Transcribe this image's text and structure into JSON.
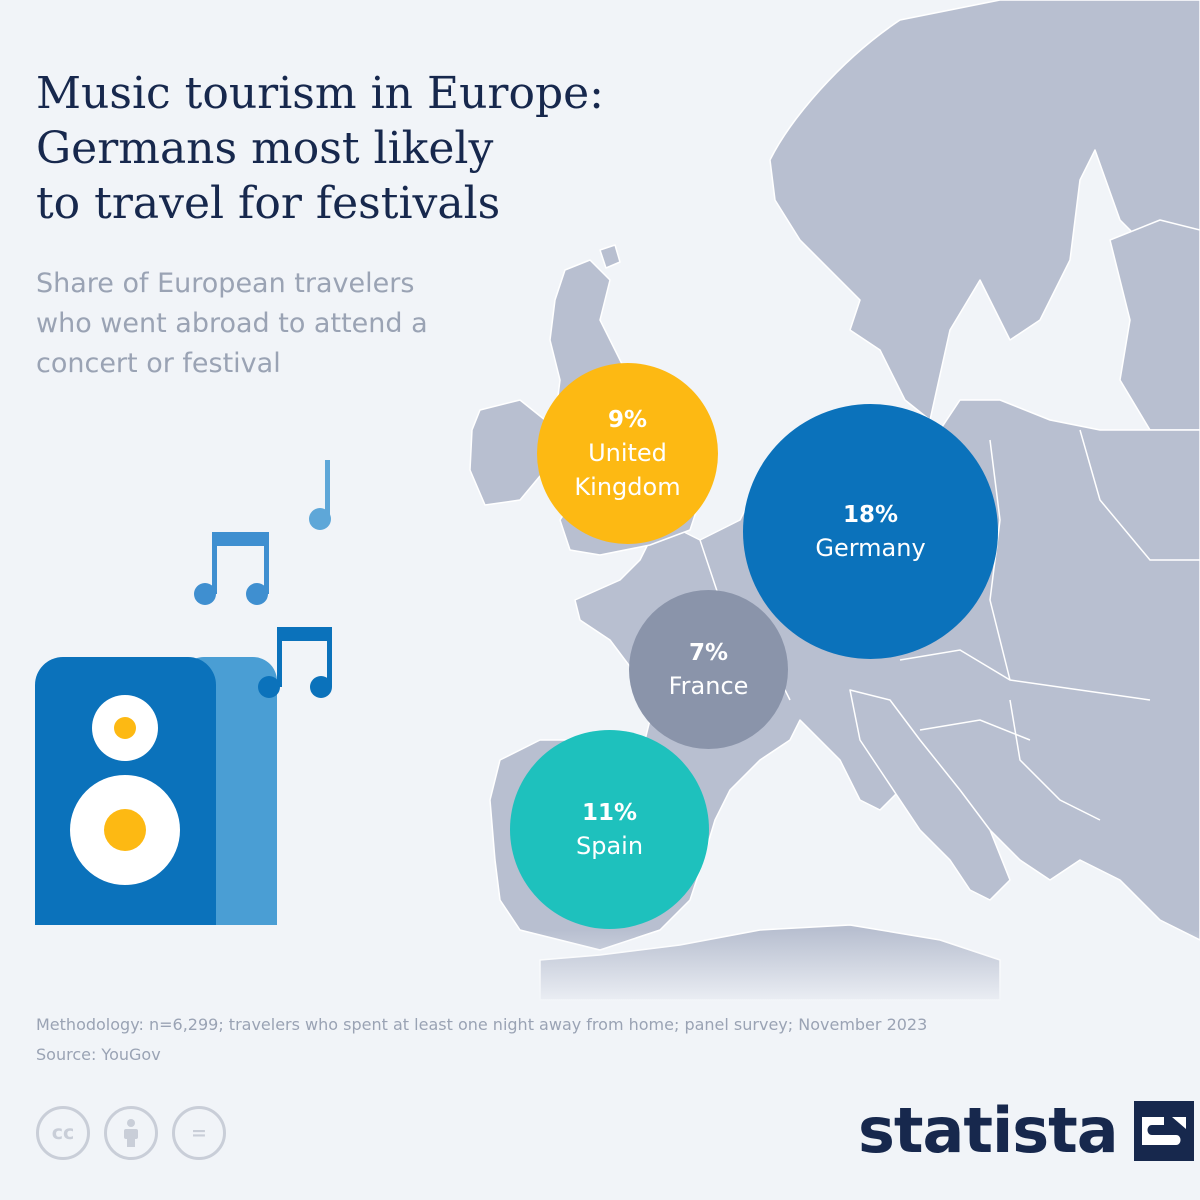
{
  "title_lines": [
    "Music tourism in Europe:",
    "Germans most likely",
    "to travel for festivals"
  ],
  "subtitle_lines": [
    "Share of European travelers",
    "who went abroad to attend a",
    "concert or festival"
  ],
  "colors": {
    "background": "#f1f4f8",
    "land": "#b8bfd0",
    "borders": "#ffffff",
    "title": "#17284d",
    "muted": "#9aa3b4"
  },
  "countries": [
    {
      "id": "uk",
      "value": "9%",
      "label_lines": [
        "United",
        "Kingdom"
      ],
      "share_pct": 9,
      "color": "#fdb913"
    },
    {
      "id": "de",
      "value": "18%",
      "label_lines": [
        "Germany"
      ],
      "share_pct": 18,
      "color": "#0b72bb"
    },
    {
      "id": "fr",
      "value": "7%",
      "label_lines": [
        "France"
      ],
      "share_pct": 7,
      "color": "#8a94aa"
    },
    {
      "id": "es",
      "value": "11%",
      "label_lines": [
        "Spain"
      ],
      "share_pct": 11,
      "color": "#1ec1bd"
    }
  ],
  "illustration": {
    "icons": [
      "speaker-icon",
      "music-note-icon",
      "beamed-notes-icon"
    ]
  },
  "footer": {
    "methodology": "Methodology: n=6,299; travelers who spent at least one night away from home; panel survey; November 2023",
    "source": "Source: YouGov"
  },
  "license_icons": [
    {
      "name": "creative-commons-icon",
      "glyph": "cc"
    },
    {
      "name": "attribution-icon",
      "glyph": ""
    },
    {
      "name": "no-derivatives-icon",
      "glyph": "="
    }
  ],
  "brand": {
    "name": "statista"
  }
}
